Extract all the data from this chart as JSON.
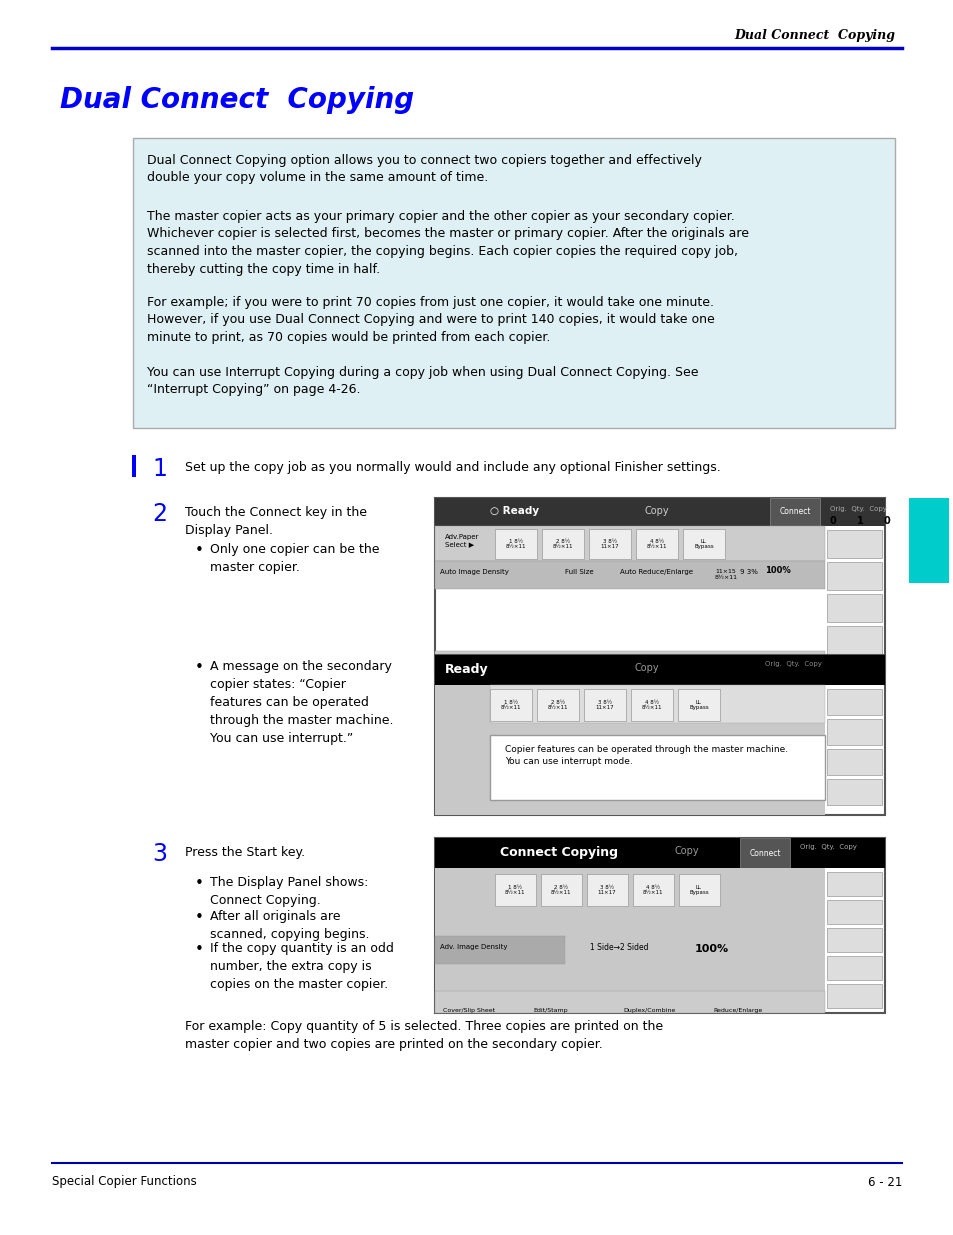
{
  "page_bg": "#ffffff",
  "header_text": "Dual Connect  Copying",
  "header_line_color": "#0000cc",
  "title_text": "Dual Connect  Copying",
  "title_color": "#0000ff",
  "info_box_bg": "#dff0f5",
  "info_box_border": "#aaaaaa",
  "info_para1": "Dual Connect Copying option allows you to connect two copiers together and effectively\ndouble your copy volume in the same amount of time.",
  "info_para2": "The master copier acts as your primary copier and the other copier as your secondary copier.\nWhichever copier is selected first, becomes the master or primary copier. After the originals are\nscanned into the master copier, the copying begins. Each copier copies the required copy job,\nthereby cutting the copy time in half.",
  "info_para3": "For example; if you were to print 70 copies from just one copier, it would take one minute.\nHowever, if you use Dual Connect Copying and were to print 140 copies, it would take one\nminute to print, as 70 copies would be printed from each copier.",
  "info_para4": "You can use Interrupt Copying during a copy job when using Dual Connect Copying. See\n“Interrupt Copying” on page 4-26.",
  "step1_text": "Set up the copy job as you normally would and include any optional Finisher settings.",
  "step2_text": "Touch the Connect key in the\nDisplay Panel.",
  "step2_bullet1": "Only one copier can be the\nmaster copier.",
  "step2_bullet2": "A message on the secondary\ncopier states: “Copier\nfeatures can be operated\nthrough the master machine.\nYou can use interrupt.”",
  "step3_text": "Press the Start key.",
  "step3_bullet1": "The Display Panel shows:\nConnect Copying.",
  "step3_bullet2": "After all originals are\nscanned, copying begins.",
  "step3_bullet3": "If the copy quantity is an odd\nnumber, the extra copy is\ncopies on the master copier.",
  "step3_extra": "For example: Copy quantity of 5 is selected. Three copies are printed on the\nmaster copier and two copies are printed on the secondary copier.",
  "cyan_tab_color": "#00cccc",
  "footer_left": "Special Copier Functions",
  "footer_right": "6 - 21",
  "footer_line_color": "#0000aa"
}
